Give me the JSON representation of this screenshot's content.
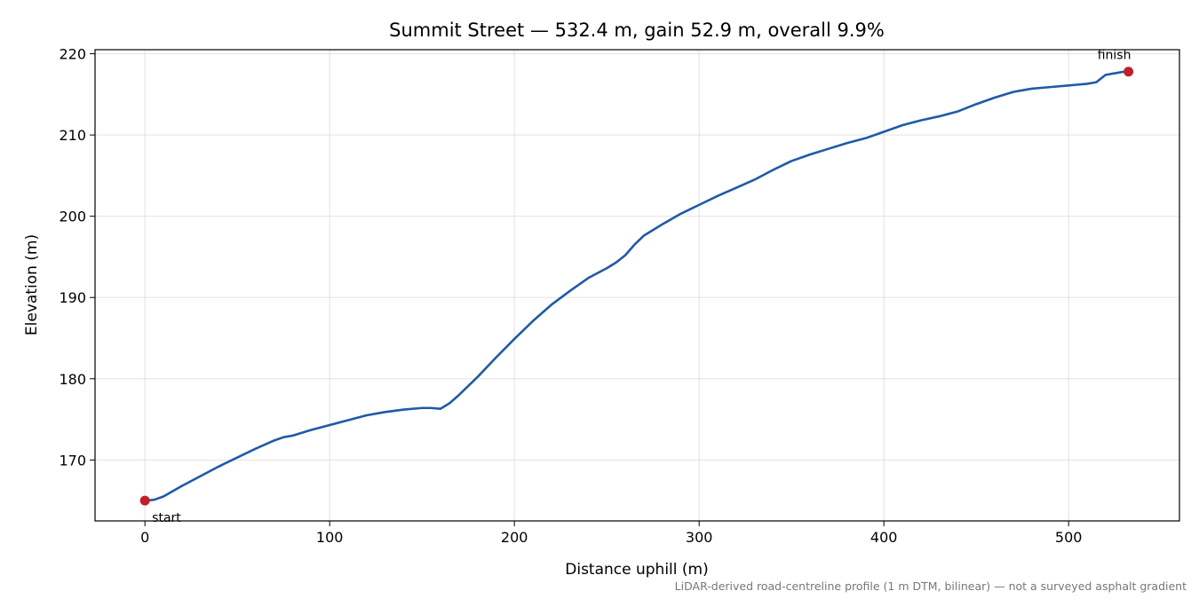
{
  "chart_data": {
    "type": "line",
    "title": "Summit Street — 532.4 m, gain 52.9 m, overall 9.9%",
    "xlabel": "Distance uphill (m)",
    "ylabel": "Elevation (m)",
    "xlim": [
      -27,
      560
    ],
    "ylim": [
      162.5,
      220.5
    ],
    "xticks": [
      0,
      100,
      200,
      300,
      400,
      500
    ],
    "yticks": [
      170,
      180,
      190,
      200,
      210,
      220
    ],
    "grid": true,
    "colors": {
      "line": "#1f5aa6",
      "markers": "#c0202a"
    },
    "series": [
      {
        "x": [
          0,
          5,
          10,
          20,
          30,
          40,
          50,
          60,
          70,
          75,
          80,
          90,
          100,
          110,
          120,
          130,
          140,
          150,
          155,
          160,
          165,
          170,
          180,
          190,
          200,
          210,
          220,
          230,
          240,
          250,
          255,
          260,
          265,
          270,
          280,
          290,
          300,
          310,
          320,
          330,
          340,
          350,
          360,
          370,
          380,
          390,
          400,
          410,
          420,
          430,
          440,
          450,
          460,
          470,
          480,
          490,
          500,
          505,
          510,
          515,
          520,
          525,
          530,
          532.4
        ],
        "y": [
          165.0,
          165.1,
          165.5,
          166.8,
          168.0,
          169.2,
          170.3,
          171.4,
          172.4,
          172.8,
          173.0,
          173.7,
          174.3,
          174.9,
          175.5,
          175.9,
          176.2,
          176.4,
          176.4,
          176.3,
          177.0,
          178.0,
          180.2,
          182.6,
          184.9,
          187.1,
          189.1,
          190.8,
          192.4,
          193.6,
          194.3,
          195.2,
          196.5,
          197.6,
          199.0,
          200.3,
          201.4,
          202.5,
          203.5,
          204.5,
          205.7,
          206.8,
          207.6,
          208.3,
          209.0,
          209.6,
          210.4,
          211.2,
          211.8,
          212.3,
          212.9,
          213.8,
          214.6,
          215.3,
          215.7,
          215.9,
          216.1,
          216.2,
          216.3,
          216.5,
          217.4,
          217.6,
          217.8,
          217.8
        ]
      }
    ],
    "annotations": [
      {
        "text": "start",
        "x": 0,
        "y": 165.0
      },
      {
        "text": "finish",
        "x": 532.4,
        "y": 217.8
      }
    ],
    "footnote": "LiDAR-derived road-centreline profile (1 m DTM, bilinear) — not a surveyed asphalt gradient"
  }
}
